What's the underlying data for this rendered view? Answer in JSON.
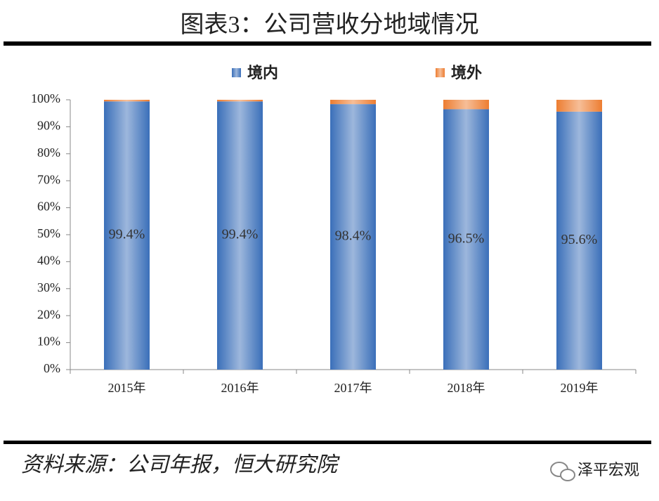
{
  "chart_data": {
    "type": "stacked_bar",
    "title": "图表3：公司营收分地域情况",
    "source": "资料来源：公司年报，恒大研究院",
    "watermark": "泽平宏观",
    "categories": [
      "2015年",
      "2016年",
      "2017年",
      "2018年",
      "2019年"
    ],
    "series": [
      {
        "name": "境内",
        "color": "#3a6fb9",
        "values": [
          99.4,
          99.4,
          98.4,
          96.5,
          95.6
        ],
        "value_labels": [
          "99.4%",
          "99.4%",
          "98.4%",
          "96.5%",
          "95.6%"
        ]
      },
      {
        "name": "境外",
        "color": "#ed7d31",
        "values": [
          0.6,
          0.6,
          1.6,
          3.5,
          4.4
        ]
      }
    ],
    "ylim": [
      0,
      100
    ],
    "yticks": [
      {
        "value": 0,
        "label": "0%"
      },
      {
        "value": 10,
        "label": "10%"
      },
      {
        "value": 20,
        "label": "20%"
      },
      {
        "value": 30,
        "label": "30%"
      },
      {
        "value": 40,
        "label": "40%"
      },
      {
        "value": 50,
        "label": "50%"
      },
      {
        "value": 60,
        "label": "60%"
      },
      {
        "value": 70,
        "label": "70%"
      },
      {
        "value": 80,
        "label": "80%"
      },
      {
        "value": 90,
        "label": "90%"
      },
      {
        "value": 100,
        "label": "100%"
      }
    ],
    "legend": "top"
  }
}
